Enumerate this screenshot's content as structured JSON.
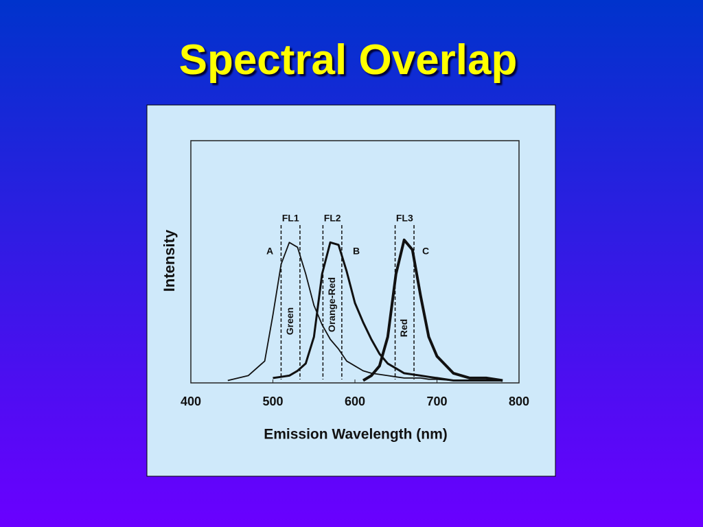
{
  "title": "Spectral Overlap",
  "chart_data": {
    "type": "line",
    "x_label": "Emission Wavelength (nm)",
    "y_label": "Intensity",
    "x": [
      445,
      470,
      490,
      500,
      510,
      520,
      530,
      540,
      550,
      560,
      570,
      580,
      590,
      600,
      610,
      620,
      630,
      640,
      650,
      660,
      670,
      680,
      690,
      700,
      720,
      740,
      760,
      780
    ],
    "series": [
      {
        "name": "A",
        "color": "#111111",
        "width": 1.8,
        "values": [
          1,
          3,
          9,
          28,
          49,
          58,
          56,
          45,
          32,
          24,
          18,
          14,
          9,
          7,
          5,
          4,
          3.5,
          3,
          2.5,
          2,
          2,
          2,
          1.5,
          1.5,
          1,
          1,
          1,
          1
        ]
      },
      {
        "name": "B",
        "color": "#111111",
        "width": 3,
        "values": [
          null,
          null,
          null,
          2,
          2.5,
          3,
          5,
          8,
          19,
          45,
          58,
          57,
          46,
          33,
          25,
          18,
          12,
          8,
          6,
          4,
          3.5,
          3,
          2.5,
          2,
          1,
          1,
          1,
          1
        ]
      },
      {
        "name": "C",
        "color": "#111111",
        "width": 4,
        "values": [
          null,
          null,
          null,
          null,
          null,
          null,
          null,
          null,
          null,
          null,
          null,
          null,
          null,
          null,
          1,
          3,
          7,
          19,
          45,
          59,
          55,
          36,
          19,
          11,
          4,
          2,
          2,
          1
        ]
      }
    ],
    "bands": [
      {
        "name": "FL1",
        "label": "Green",
        "range": [
          510,
          533
        ]
      },
      {
        "name": "FL2",
        "label": "Orange-Red",
        "range": [
          561,
          584
        ]
      },
      {
        "name": "FL3",
        "label": "Red",
        "range": [
          649,
          672
        ]
      }
    ],
    "xlim": [
      400,
      800
    ],
    "xticks": [
      400,
      500,
      600,
      700,
      800
    ],
    "ylim": [
      0,
      100
    ],
    "grid": false
  }
}
